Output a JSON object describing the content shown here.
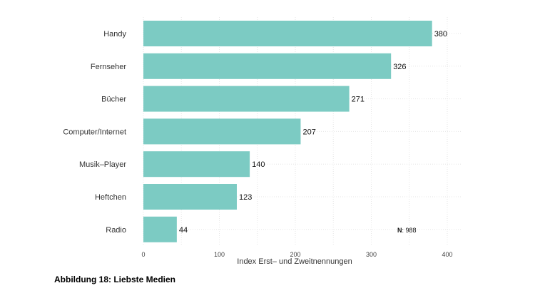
{
  "caption": "Abbildung 18: Liebste Medien",
  "chart_data": {
    "type": "bar",
    "orientation": "horizontal",
    "categories": [
      "Handy",
      "Fernseher",
      "Bücher",
      "Computer/Internet",
      "Musik–Player",
      "Heftchen",
      "Radio"
    ],
    "values": [
      380,
      326,
      271,
      207,
      140,
      123,
      44
    ],
    "xlabel": "Index Erst– und Zweitnennungen",
    "ylabel": "",
    "xlim": [
      0,
      420
    ],
    "xticks": [
      0,
      100,
      200,
      300,
      400
    ],
    "grid": true,
    "bar_color": "#7ccbc3",
    "annotation": {
      "key": "N",
      "value": ": 988"
    }
  }
}
